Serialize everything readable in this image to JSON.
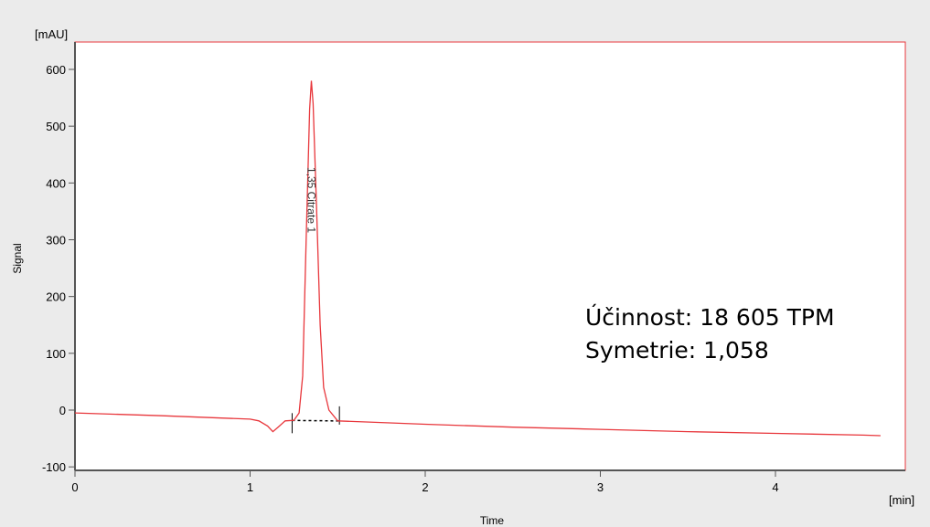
{
  "chart_data": {
    "type": "line",
    "title": "",
    "xlabel": "Time",
    "ylabel": "Signal",
    "x_unit": "[min]",
    "y_unit": "[mAU]",
    "xlim": [
      0,
      4.7
    ],
    "ylim": [
      -100,
      650
    ],
    "x_ticks": [
      0,
      1,
      2,
      3,
      4
    ],
    "y_ticks": [
      -100,
      0,
      100,
      200,
      300,
      400,
      500,
      600
    ],
    "grid": false,
    "line_color": "#e8373c",
    "series": [
      {
        "x": [
          0,
          0.5,
          1.0,
          1.05,
          1.1,
          1.13,
          1.16,
          1.2,
          1.25,
          1.28,
          1.3,
          1.32,
          1.34,
          1.35,
          1.36,
          1.38,
          1.4,
          1.42,
          1.45,
          1.5,
          2.0,
          2.5,
          3.0,
          3.5,
          4.0,
          4.5,
          4.6
        ],
        "values": [
          -5,
          -10,
          -16,
          -19,
          -28,
          -38,
          -30,
          -19,
          -18,
          -5,
          60,
          300,
          530,
          580,
          540,
          350,
          150,
          40,
          0,
          -19,
          -25,
          -30,
          -34,
          -38,
          -41,
          -44,
          -45
        ]
      }
    ],
    "peaks": [
      {
        "time": 1.35,
        "label": "1,35 Citrate 1",
        "baseline_start": 1.24,
        "baseline_end": 1.51
      }
    ],
    "annotations": [
      "Účinnost: 18 605 TPM",
      "Symetrie: 1,058"
    ]
  }
}
